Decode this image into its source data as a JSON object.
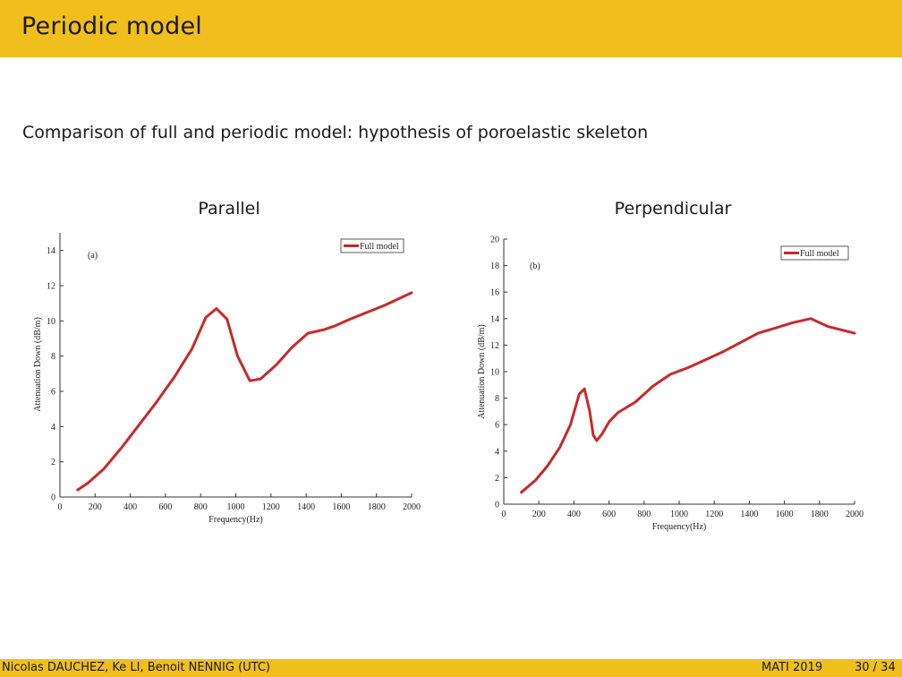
{
  "slide": {
    "title": "Periodic model",
    "subtitle": "Comparison of full and periodic model: hypothesis of poroelastic skeleton",
    "footer": {
      "authors": "Nicolas DAUCHEZ, Ke LI, Benoit NENNIG  (UTC)",
      "conference": "MATI 2019",
      "page": "30 / 34"
    }
  },
  "colors": {
    "header": "#f0bf1e",
    "series": "#c8292a"
  },
  "chart_data": [
    {
      "type": "line",
      "title": "Parallel",
      "panel_label": "(a)",
      "xlabel": "Frequency(Hz)",
      "ylabel": "Attenuation Down (dB/m)",
      "xlim": [
        0,
        2000
      ],
      "ylim": [
        0,
        15
      ],
      "xticks": [
        0,
        200,
        400,
        600,
        800,
        1000,
        1200,
        1400,
        1600,
        1800,
        2000
      ],
      "yticks": [
        0,
        2,
        4,
        6,
        8,
        10,
        12,
        14
      ],
      "legend": "top-right",
      "grid": false,
      "series": [
        {
          "name": "Full model",
          "x": [
            100,
            160,
            250,
            350,
            450,
            550,
            650,
            750,
            830,
            890,
            950,
            1010,
            1080,
            1140,
            1230,
            1320,
            1410,
            1500,
            1560,
            1650,
            1750,
            1850,
            2000
          ],
          "y": [
            0.4,
            0.8,
            1.6,
            2.8,
            4.1,
            5.4,
            6.8,
            8.4,
            10.2,
            10.7,
            10.1,
            8.0,
            6.6,
            6.7,
            7.5,
            8.5,
            9.3,
            9.5,
            9.7,
            10.1,
            10.5,
            10.9,
            11.6
          ]
        }
      ]
    },
    {
      "type": "line",
      "title": "Perpendicular",
      "panel_label": "(b)",
      "xlabel": "Frequency(Hz)",
      "ylabel": "Attenuation Down (dB/m)",
      "xlim": [
        0,
        2000
      ],
      "ylim": [
        0,
        20
      ],
      "xticks": [
        0,
        200,
        400,
        600,
        800,
        1000,
        1200,
        1400,
        1600,
        1800,
        2000
      ],
      "yticks": [
        0,
        2,
        4,
        6,
        8,
        10,
        12,
        14,
        16,
        18,
        20
      ],
      "legend": "top-right",
      "grid": false,
      "series": [
        {
          "name": "Full model",
          "x": [
            100,
            180,
            250,
            320,
            380,
            430,
            460,
            490,
            510,
            530,
            560,
            600,
            650,
            750,
            850,
            950,
            1050,
            1150,
            1250,
            1350,
            1450,
            1550,
            1650,
            1750,
            1850,
            2000
          ],
          "y": [
            0.9,
            1.8,
            2.9,
            4.3,
            6.0,
            8.3,
            8.7,
            7.0,
            5.2,
            4.8,
            5.3,
            6.2,
            6.9,
            7.7,
            8.9,
            9.8,
            10.3,
            10.9,
            11.5,
            12.2,
            12.9,
            13.3,
            13.7,
            14.0,
            13.4,
            12.9
          ]
        }
      ]
    }
  ]
}
